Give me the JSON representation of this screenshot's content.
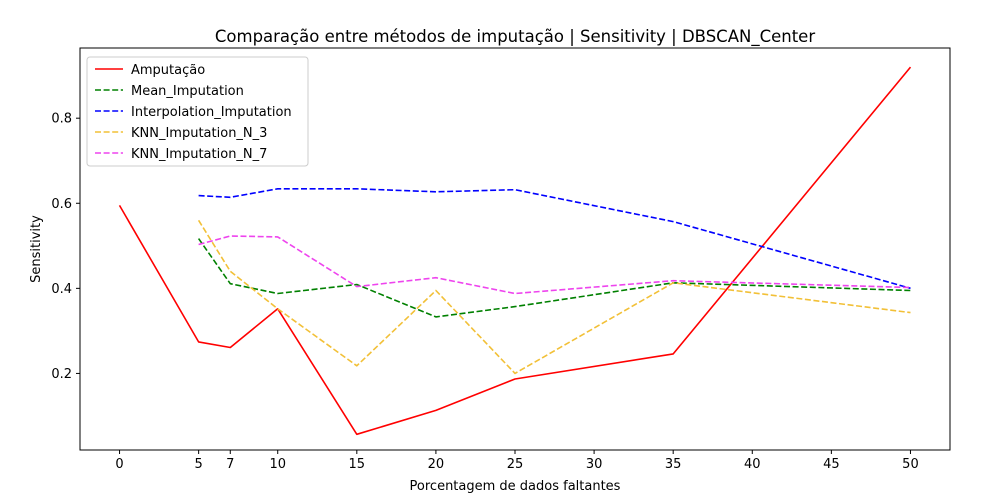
{
  "chart_data": {
    "type": "line",
    "title": "Comparação entre métodos de imputação | Sensitivity | DBSCAN_Center",
    "xlabel": "Porcentagem de dados faltantes",
    "ylabel": "Sensitivity",
    "xlim": [
      -2.5,
      52.5
    ],
    "ylim": [
      0.02,
      0.965
    ],
    "xticks": [
      0,
      5,
      7,
      10,
      15,
      20,
      25,
      30,
      35,
      40,
      45,
      50
    ],
    "yticks": [
      0.2,
      0.4,
      0.6,
      0.8
    ],
    "ytick_labels": [
      "0.2",
      "0.4",
      "0.6",
      "0.8"
    ],
    "grid": false,
    "legend_position": "top-left",
    "series": [
      {
        "name": "Amputação",
        "color": "#ff0000",
        "dash": "solid",
        "points": [
          [
            0,
            0.595
          ],
          [
            5,
            0.274
          ],
          [
            7,
            0.261
          ],
          [
            10,
            0.352
          ],
          [
            15,
            0.057
          ],
          [
            20,
            0.113
          ],
          [
            25,
            0.187
          ],
          [
            35,
            0.246
          ],
          [
            50,
            0.92
          ]
        ]
      },
      {
        "name": "Mean_Imputation",
        "color": "#008000",
        "dash": "dashed",
        "points": [
          [
            5,
            0.517
          ],
          [
            7,
            0.411
          ],
          [
            10,
            0.388
          ],
          [
            15,
            0.409
          ],
          [
            20,
            0.333
          ],
          [
            25,
            0.357
          ],
          [
            35,
            0.413
          ],
          [
            50,
            0.395
          ]
        ]
      },
      {
        "name": "Interpolation_Imputation",
        "color": "#0000ff",
        "dash": "dashed",
        "points": [
          [
            5,
            0.618
          ],
          [
            7,
            0.614
          ],
          [
            10,
            0.634
          ],
          [
            15,
            0.634
          ],
          [
            20,
            0.627
          ],
          [
            25,
            0.632
          ],
          [
            35,
            0.557
          ],
          [
            50,
            0.4
          ]
        ]
      },
      {
        "name": "KNN_Imputation_N_3",
        "color": "#f2c037",
        "dash": "dashed",
        "points": [
          [
            5,
            0.56
          ],
          [
            7,
            0.44
          ],
          [
            10,
            0.352
          ],
          [
            15,
            0.218
          ],
          [
            20,
            0.395
          ],
          [
            25,
            0.2
          ],
          [
            35,
            0.413
          ],
          [
            50,
            0.343
          ]
        ]
      },
      {
        "name": "KNN_Imputation_N_7",
        "color": "#ee44ee",
        "dash": "dashed",
        "points": [
          [
            5,
            0.503
          ],
          [
            7,
            0.523
          ],
          [
            10,
            0.521
          ],
          [
            15,
            0.404
          ],
          [
            20,
            0.425
          ],
          [
            25,
            0.388
          ],
          [
            35,
            0.418
          ],
          [
            50,
            0.402
          ]
        ]
      }
    ]
  }
}
